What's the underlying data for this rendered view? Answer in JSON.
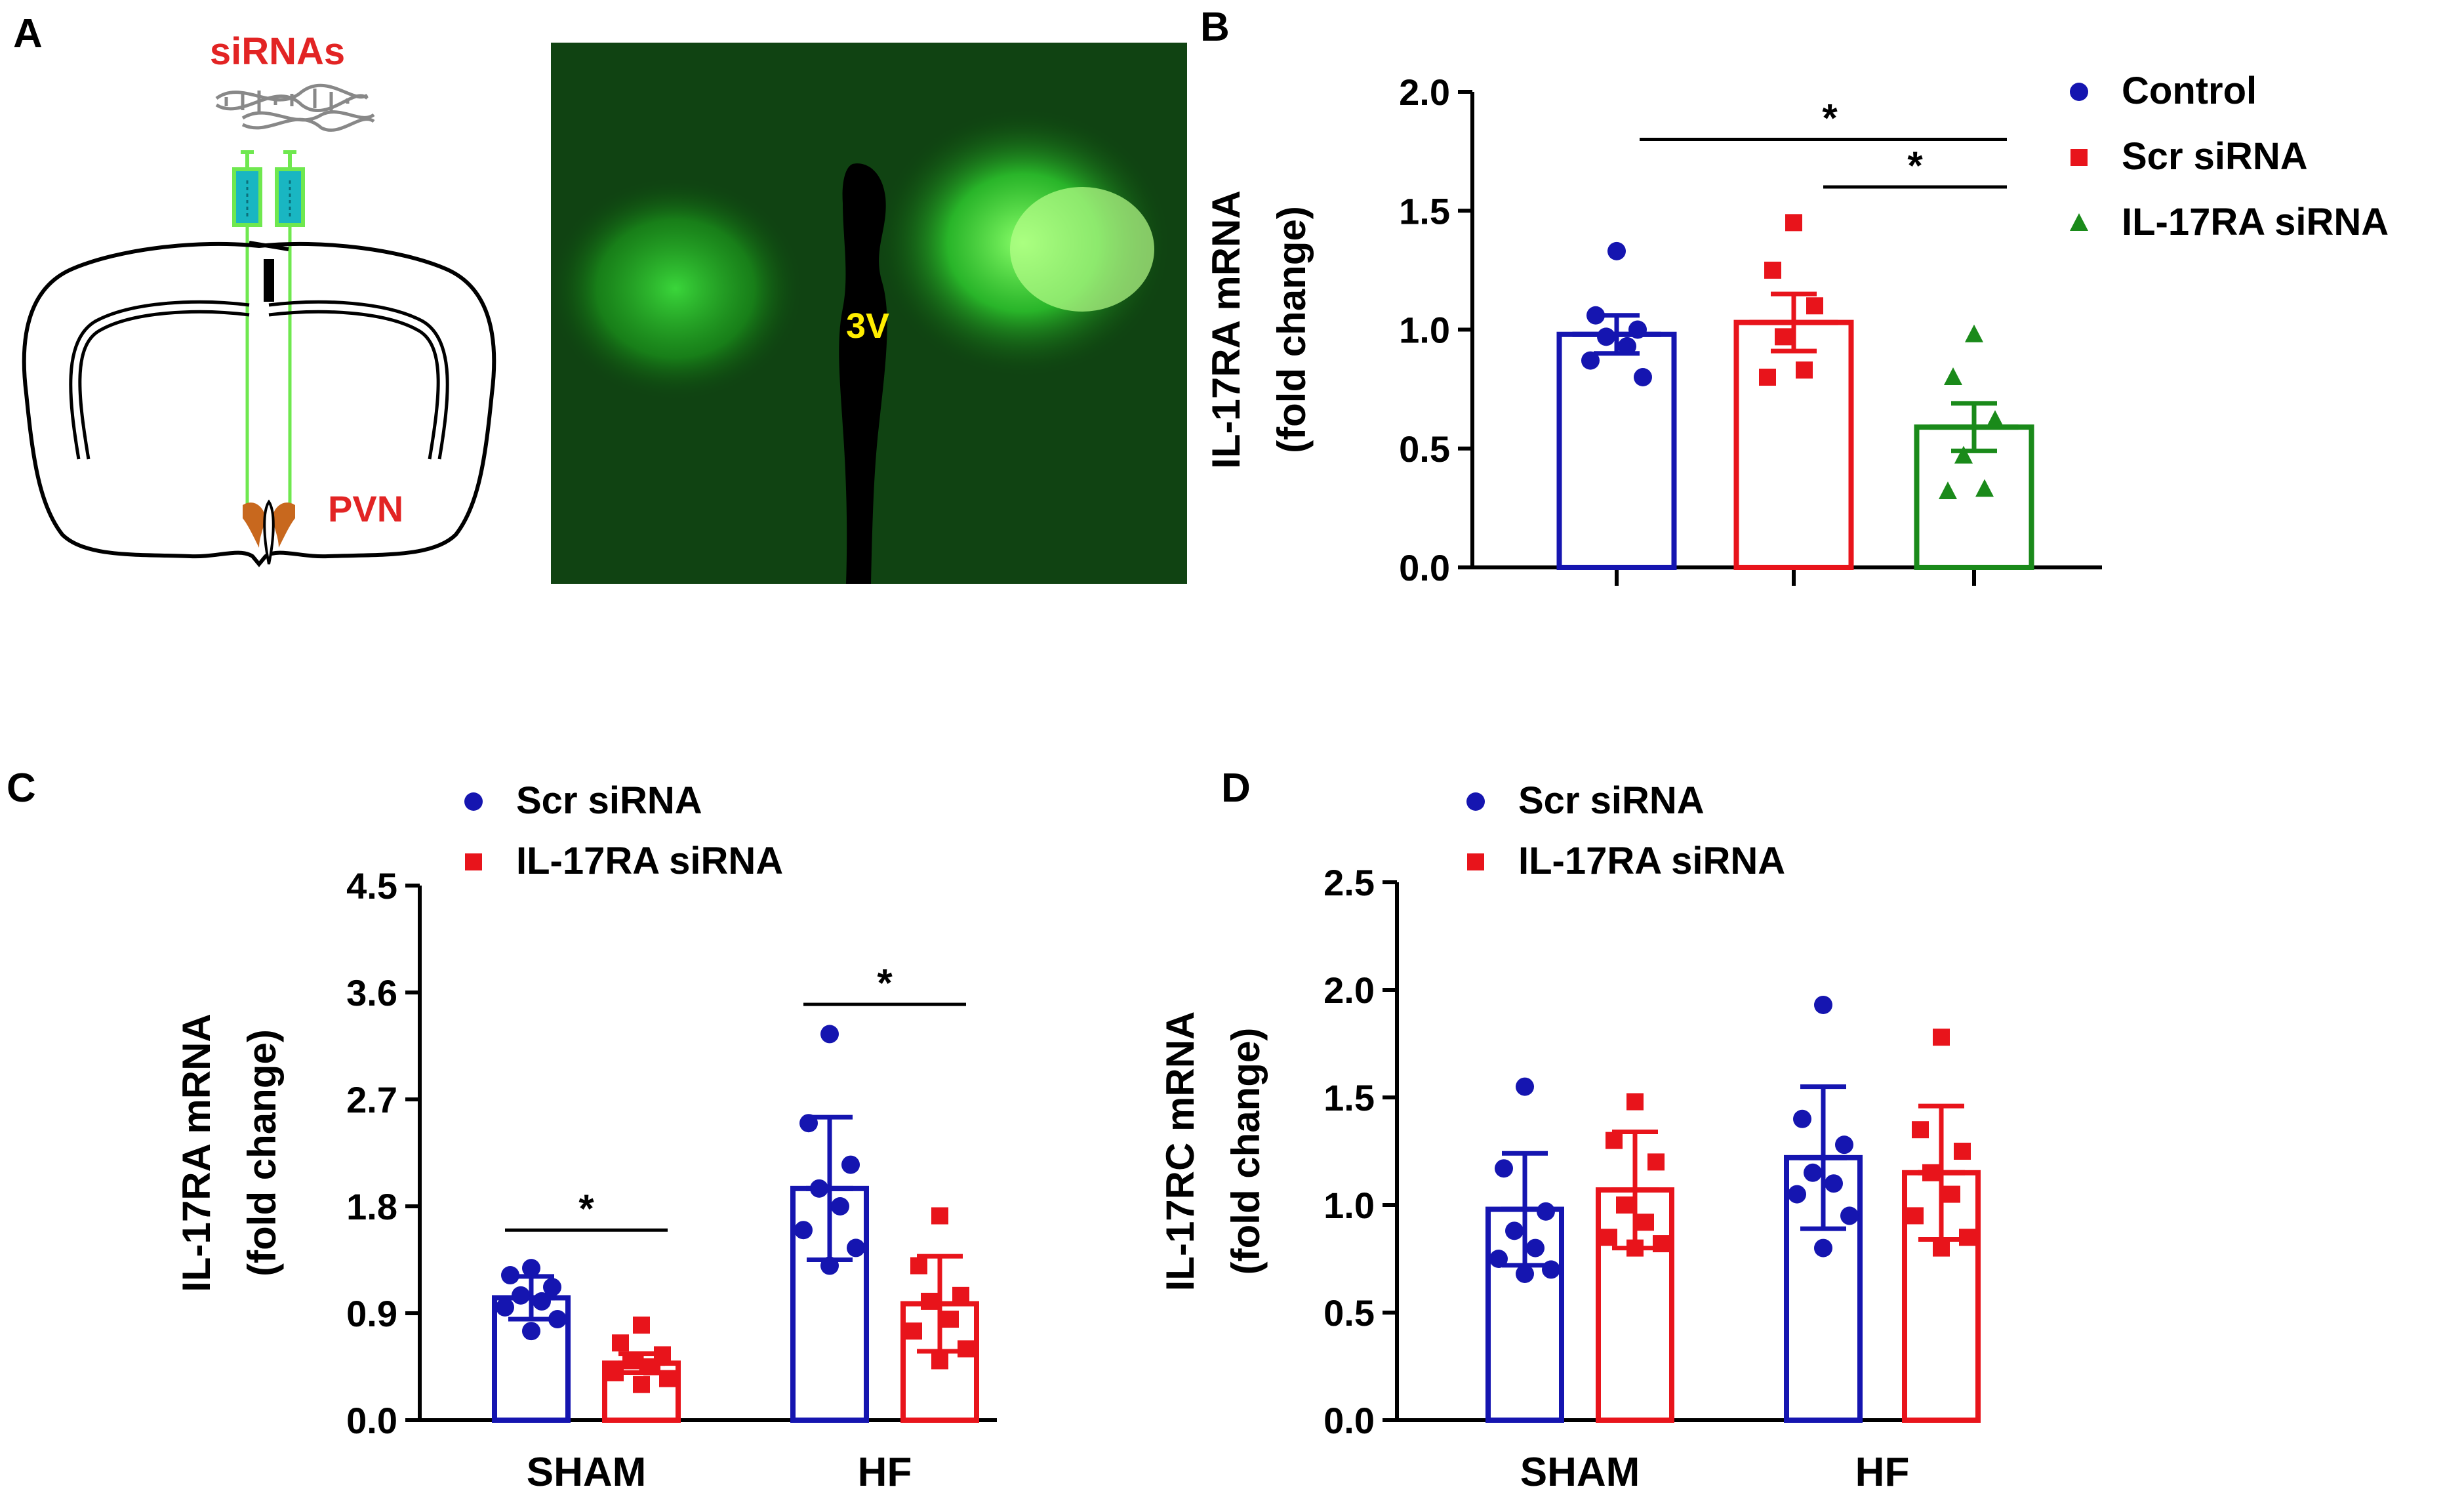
{
  "panel_labels": {
    "a": "A",
    "b": "B",
    "c": "C",
    "d": "D"
  },
  "schematic": {
    "sirnas_label": "siRNAs",
    "pvn_label": "PVN",
    "ventricle_label": "3V"
  },
  "colors": {
    "blue": "#1515b0",
    "red": "#e8141b",
    "green": "#1a8a1a",
    "label_red": "#e22424",
    "pvn_brown": "#c8681e",
    "syringe_fill": "#19b6c2",
    "syringe_line": "#6fe84f",
    "ventricle_label": "#ffee00",
    "black": "#000000"
  },
  "chart_data": [
    {
      "id": "B",
      "type": "bar",
      "title": "",
      "ylabel_line1": "IL-17RA mRNA",
      "ylabel_line2": "(fold change)",
      "ylim": [
        0,
        2.0
      ],
      "yticks": [
        "0.0",
        "0.5",
        "1.0",
        "1.5",
        "2.0"
      ],
      "categories": [
        "Control",
        "Scr siRNA",
        "IL-17RA siRNA"
      ],
      "legend": [
        "Control",
        "Scr siRNA",
        "IL-17RA siRNA"
      ],
      "values": [
        0.98,
        1.03,
        0.59
      ],
      "errors": [
        0.08,
        0.12,
        0.1
      ],
      "points": [
        [
          1.33,
          1.06,
          1.0,
          0.97,
          0.93,
          0.87,
          0.8
        ],
        [
          1.45,
          1.25,
          1.1,
          0.97,
          0.83,
          0.8
        ],
        [
          0.98,
          0.8,
          0.62,
          0.47,
          0.33,
          0.32
        ]
      ],
      "significance": [
        {
          "from": 0,
          "to": 2,
          "y": 1.8,
          "label": "*"
        },
        {
          "from": 1,
          "to": 2,
          "y": 1.6,
          "label": "*"
        }
      ]
    },
    {
      "id": "C",
      "type": "bar",
      "title": "",
      "ylabel_line1": "IL-17RA mRNA",
      "ylabel_line2": "(fold change)",
      "ylim": [
        0,
        4.5
      ],
      "yticks": [
        "0.0",
        "0.9",
        "1.8",
        "2.7",
        "3.6",
        "4.5"
      ],
      "categories": [
        "SHAM",
        "HF"
      ],
      "legend": [
        "Scr siRNA",
        "IL-17RA siRNA"
      ],
      "series": [
        {
          "name": "Scr siRNA",
          "values": [
            1.03,
            1.95
          ],
          "errors": [
            0.18,
            0.6
          ],
          "points": [
            [
              1.28,
              1.22,
              1.12,
              1.05,
              1.0,
              0.95,
              0.85,
              0.75
            ],
            [
              3.25,
              2.5,
              2.15,
              1.95,
              1.8,
              1.6,
              1.45,
              1.3
            ]
          ]
        },
        {
          "name": "IL-17RA siRNA",
          "values": [
            0.48,
            0.98
          ],
          "errors": [
            0.08,
            0.4
          ],
          "points": [
            [
              0.8,
              0.65,
              0.55,
              0.5,
              0.45,
              0.4,
              0.35,
              0.3
            ],
            [
              1.72,
              1.3,
              1.05,
              1.0,
              0.85,
              0.75,
              0.6,
              0.5
            ]
          ]
        }
      ],
      "significance": [
        {
          "category": 0,
          "y": 1.6,
          "label": "*"
        },
        {
          "category": 1,
          "y": 3.5,
          "label": "*"
        }
      ]
    },
    {
      "id": "D",
      "type": "bar",
      "title": "",
      "ylabel_line1": "IL-17RC mRNA",
      "ylabel_line2": "(fold change)",
      "ylim": [
        0,
        2.5
      ],
      "yticks": [
        "0.0",
        "0.5",
        "1.0",
        "1.5",
        "2.0",
        "2.5"
      ],
      "categories": [
        "SHAM",
        "HF"
      ],
      "legend": [
        "Scr siRNA",
        "IL-17RA siRNA"
      ],
      "series": [
        {
          "name": "Scr siRNA",
          "values": [
            0.98,
            1.22
          ],
          "errors": [
            0.26,
            0.33
          ],
          "points": [
            [
              1.55,
              1.17,
              0.97,
              0.88,
              0.8,
              0.75,
              0.7,
              0.68
            ],
            [
              1.93,
              1.4,
              1.28,
              1.15,
              1.1,
              1.05,
              0.95,
              0.8
            ]
          ]
        },
        {
          "name": "IL-17RA siRNA",
          "values": [
            1.07,
            1.15
          ],
          "errors": [
            0.27,
            0.31
          ],
          "points": [
            [
              1.48,
              1.3,
              1.2,
              1.0,
              0.92,
              0.85,
              0.82,
              0.8
            ],
            [
              1.78,
              1.35,
              1.25,
              1.15,
              1.05,
              0.95,
              0.85,
              0.8
            ]
          ]
        }
      ],
      "significance": []
    }
  ]
}
